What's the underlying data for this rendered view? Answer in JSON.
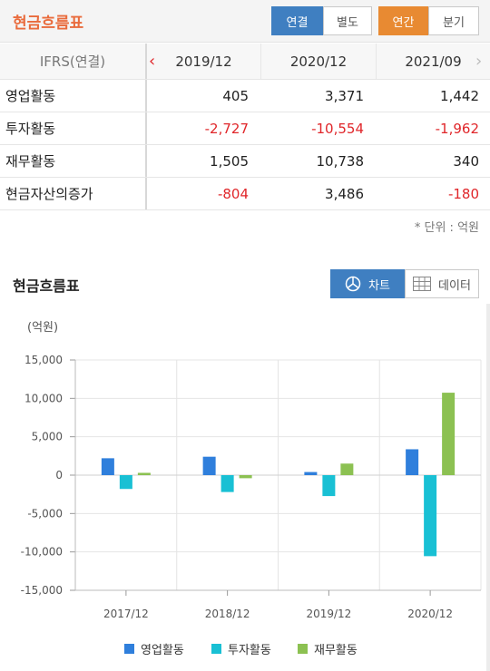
{
  "header": {
    "title": "현금흐름표",
    "toggle_consolidated": "연결",
    "toggle_separate": "별도",
    "toggle_annual": "연간",
    "toggle_quarterly": "분기"
  },
  "table": {
    "corner": "IFRS(연결)",
    "periods": [
      "2019/12",
      "2020/12",
      "2021/09"
    ],
    "rows": [
      {
        "label": "영업활동",
        "values": [
          "405",
          "3,371",
          "1,442"
        ]
      },
      {
        "label": "투자활동",
        "values": [
          "-2,727",
          "-10,554",
          "-1,962"
        ]
      },
      {
        "label": "재무활동",
        "values": [
          "1,505",
          "10,738",
          "340"
        ]
      },
      {
        "label": "현금자산의증가",
        "values": [
          "-804",
          "3,486",
          "-180"
        ]
      }
    ],
    "unit_note": "* 단위 : 억원"
  },
  "chart_section": {
    "title": "현금흐름표",
    "view_chart": "차트",
    "view_data": "데이터",
    "unit_label": "(억원)"
  },
  "colors": {
    "series1": "#2f7fdc",
    "series2": "#19c0d4",
    "series3": "#8cc152",
    "negative": "#e0262a",
    "accent_blue": "#3f7fc1",
    "accent_orange": "#e88a32",
    "title_orange": "#e96b3c"
  },
  "chart_data": {
    "type": "bar",
    "categories": [
      "2017/12",
      "2018/12",
      "2019/12",
      "2020/12"
    ],
    "series": [
      {
        "name": "영업활동",
        "values": [
          2200,
          2400,
          405,
          3371
        ]
      },
      {
        "name": "투자활동",
        "values": [
          -1800,
          -2200,
          -2727,
          -10554
        ]
      },
      {
        "name": "재무활동",
        "values": [
          300,
          -400,
          1505,
          10738
        ]
      }
    ],
    "ylim": [
      -15000,
      15000
    ],
    "yticks": [
      "15,000",
      "10,000",
      "5,000",
      "0",
      "-5,000",
      "-10,000",
      "-15,000"
    ],
    "ytick_values": [
      15000,
      10000,
      5000,
      0,
      -5000,
      -10000,
      -15000
    ],
    "grid": true,
    "legend": "bottom"
  }
}
